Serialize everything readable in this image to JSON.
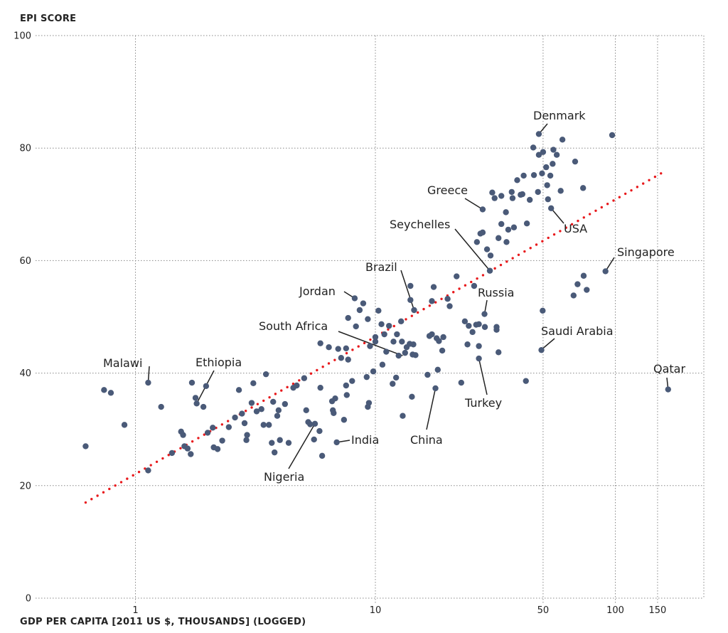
{
  "chart_data": {
    "type": "scatter",
    "ylabel": "EPI SCORE",
    "xlabel": "GDP PER CAPITA [2011 US $, THOUSANDS] (LOGGED)",
    "x_scale": "log",
    "xlim": [
      0.5,
      180
    ],
    "ylim": [
      0,
      100
    ],
    "x_ticks": [
      {
        "value": 1,
        "label": "1"
      },
      {
        "value": 10,
        "label": "10"
      },
      {
        "value": 50,
        "label": "50"
      },
      {
        "value": 100,
        "label": "100"
      },
      {
        "value": 150,
        "label": "150"
      }
    ],
    "y_ticks": [
      {
        "value": 0,
        "label": "0"
      },
      {
        "value": 20,
        "label": "20"
      },
      {
        "value": 40,
        "label": "40"
      },
      {
        "value": 60,
        "label": "60"
      },
      {
        "value": 80,
        "label": "80"
      },
      {
        "value": 100,
        "label": "100"
      }
    ],
    "grid": true,
    "dot_color": "#4a5a78",
    "trend_color": "#e8191c",
    "trend_line": {
      "style": "dotted",
      "x": [
        0.62,
        155
      ],
      "y": [
        17,
        75.5
      ]
    },
    "annotations": [
      {
        "label": "Denmark",
        "x": 48,
        "y": 82.5
      },
      {
        "label": "Greece",
        "x": 28,
        "y": 69.1
      },
      {
        "label": "Seychelles",
        "x": 30,
        "y": 58.2
      },
      {
        "label": "USA",
        "x": 54,
        "y": 69.3
      },
      {
        "label": "Singapore",
        "x": 91,
        "y": 58.1
      },
      {
        "label": "Brazil",
        "x": 14.5,
        "y": 51.2
      },
      {
        "label": "Russia",
        "x": 28.5,
        "y": 50.5
      },
      {
        "label": "Jordan",
        "x": 8.2,
        "y": 53.3
      },
      {
        "label": "South Africa",
        "x": 13,
        "y": 43.1
      },
      {
        "label": "Saudi Arabia",
        "x": 49,
        "y": 44.1
      },
      {
        "label": "Malawi",
        "x": 1.13,
        "y": 38.3
      },
      {
        "label": "Ethiopia",
        "x": 1.8,
        "y": 34.6
      },
      {
        "label": "Qatar",
        "x": 166,
        "y": 37.1
      },
      {
        "label": "Turkey",
        "x": 27,
        "y": 42.6
      },
      {
        "label": "China",
        "x": 17.8,
        "y": 37.3
      },
      {
        "label": "India",
        "x": 6.9,
        "y": 27.7
      },
      {
        "label": "Nigeria",
        "x": 5.6,
        "y": 31.0
      }
    ],
    "points": [
      [
        0.62,
        27
      ],
      [
        0.74,
        37
      ],
      [
        0.79,
        36.5
      ],
      [
        0.9,
        30.8
      ],
      [
        1.13,
        38.3
      ],
      [
        1.13,
        22.7
      ],
      [
        1.28,
        34
      ],
      [
        1.42,
        25.8
      ],
      [
        1.55,
        29.6
      ],
      [
        1.58,
        29
      ],
      [
        1.6,
        27
      ],
      [
        1.65,
        26.6
      ],
      [
        1.7,
        25.6
      ],
      [
        1.72,
        38.3
      ],
      [
        1.8,
        34.6
      ],
      [
        1.78,
        35.6
      ],
      [
        1.92,
        34
      ],
      [
        1.97,
        37.7
      ],
      [
        2.0,
        29.4
      ],
      [
        2.1,
        30.3
      ],
      [
        2.12,
        26.8
      ],
      [
        2.2,
        26.5
      ],
      [
        2.3,
        28
      ],
      [
        2.45,
        30.4
      ],
      [
        2.6,
        32.1
      ],
      [
        2.7,
        37
      ],
      [
        2.78,
        32.8
      ],
      [
        2.85,
        31.1
      ],
      [
        2.9,
        28.1
      ],
      [
        2.92,
        29
      ],
      [
        3.05,
        34.7
      ],
      [
        3.1,
        38.2
      ],
      [
        3.2,
        33.2
      ],
      [
        3.35,
        33.6
      ],
      [
        3.42,
        30.8
      ],
      [
        3.5,
        39.8
      ],
      [
        3.6,
        30.8
      ],
      [
        3.75,
        34.9
      ],
      [
        3.7,
        27.6
      ],
      [
        3.8,
        25.9
      ],
      [
        3.9,
        32.4
      ],
      [
        3.95,
        33.4
      ],
      [
        4.0,
        28.1
      ],
      [
        4.2,
        34.5
      ],
      [
        4.35,
        27.6
      ],
      [
        4.55,
        37.4
      ],
      [
        4.7,
        37.8
      ],
      [
        5.05,
        39.1
      ],
      [
        5.15,
        33.4
      ],
      [
        5.25,
        31.3
      ],
      [
        5.35,
        30.9
      ],
      [
        5.55,
        28.2
      ],
      [
        5.6,
        31.0
      ],
      [
        5.85,
        29.7
      ],
      [
        5.9,
        37.4
      ],
      [
        6.0,
        25.3
      ],
      [
        5.9,
        45.3
      ],
      [
        6.4,
        44.6
      ],
      [
        6.6,
        35
      ],
      [
        6.65,
        33.4
      ],
      [
        6.7,
        32.9
      ],
      [
        6.8,
        35.5
      ],
      [
        6.9,
        27.7
      ],
      [
        7.0,
        44.3
      ],
      [
        7.2,
        42.7
      ],
      [
        7.4,
        31.7
      ],
      [
        7.55,
        37.8
      ],
      [
        7.55,
        44.4
      ],
      [
        7.6,
        36.1
      ],
      [
        7.7,
        42.4
      ],
      [
        7.7,
        49.8
      ],
      [
        8.0,
        38.6
      ],
      [
        8.3,
        48.3
      ],
      [
        8.2,
        53.3
      ],
      [
        8.6,
        51.2
      ],
      [
        8.9,
        52.4
      ],
      [
        9.2,
        39.3
      ],
      [
        9.3,
        34
      ],
      [
        9.4,
        34.7
      ],
      [
        9.3,
        49.6
      ],
      [
        9.5,
        44.8
      ],
      [
        9.8,
        40.3
      ],
      [
        10.0,
        45.6
      ],
      [
        10.0,
        46.4
      ],
      [
        10.3,
        51.1
      ],
      [
        10.6,
        48.7
      ],
      [
        10.7,
        41.5
      ],
      [
        10.9,
        46.9
      ],
      [
        11.1,
        43.8
      ],
      [
        11.4,
        48.4
      ],
      [
        11.8,
        38.1
      ],
      [
        11.9,
        45.6
      ],
      [
        12.3,
        46.9
      ],
      [
        12.2,
        39.2
      ],
      [
        12.5,
        43.1
      ],
      [
        12.8,
        49.2
      ],
      [
        12.9,
        45.6
      ],
      [
        13.0,
        32.4
      ],
      [
        13.3,
        43.6
      ],
      [
        13.5,
        44.6
      ],
      [
        13.9,
        45.2
      ],
      [
        14.0,
        53
      ],
      [
        14.2,
        35.8
      ],
      [
        14.4,
        45.1
      ],
      [
        14.5,
        51.2
      ],
      [
        14.3,
        43.3
      ],
      [
        14.0,
        55.5
      ],
      [
        14.7,
        43.2
      ],
      [
        16.5,
        39.7
      ],
      [
        16.8,
        46.6
      ],
      [
        17.2,
        46.9
      ],
      [
        17.2,
        52.8
      ],
      [
        17.8,
        37.3
      ],
      [
        17.5,
        55.3
      ],
      [
        18.0,
        46.2
      ],
      [
        18.2,
        40.6
      ],
      [
        18.4,
        45.7
      ],
      [
        19.0,
        44
      ],
      [
        19.2,
        46.4
      ],
      [
        20.0,
        53.2
      ],
      [
        20.4,
        51.9
      ],
      [
        21.8,
        57.2
      ],
      [
        22.8,
        38.3
      ],
      [
        23.6,
        49.2
      ],
      [
        24.2,
        45.1
      ],
      [
        24.5,
        48.4
      ],
      [
        25.4,
        47.3
      ],
      [
        25.8,
        55.5
      ],
      [
        26.3,
        48.6
      ],
      [
        26.5,
        63.3
      ],
      [
        27.0,
        42.6
      ],
      [
        27.0,
        44.8
      ],
      [
        27.0,
        48.7
      ],
      [
        27.4,
        64.8
      ],
      [
        28.0,
        65
      ],
      [
        28.0,
        69.1
      ],
      [
        28.5,
        50.5
      ],
      [
        28.6,
        48.2
      ],
      [
        29.2,
        62
      ],
      [
        30.0,
        58.2
      ],
      [
        30.2,
        60.9
      ],
      [
        30.7,
        72.1
      ],
      [
        31.4,
        71.1
      ],
      [
        32.0,
        47.7
      ],
      [
        32.0,
        48.2
      ],
      [
        32.6,
        43.7
      ],
      [
        32.6,
        64
      ],
      [
        33.5,
        66.5
      ],
      [
        33.5,
        71.5
      ],
      [
        35.0,
        68.6
      ],
      [
        35.2,
        63.3
      ],
      [
        35.8,
        65.5
      ],
      [
        37.0,
        72.2
      ],
      [
        37.3,
        71.1
      ],
      [
        37.8,
        65.9
      ],
      [
        39.0,
        74.3
      ],
      [
        40.3,
        71.7
      ],
      [
        41.0,
        71.8
      ],
      [
        41.5,
        75.1
      ],
      [
        42.4,
        38.6
      ],
      [
        42.8,
        66.6
      ],
      [
        44.0,
        70.8
      ],
      [
        45.5,
        80.1
      ],
      [
        45.8,
        75.2
      ],
      [
        47.6,
        72.2
      ],
      [
        48.0,
        82.5
      ],
      [
        48.0,
        78.8
      ],
      [
        49.2,
        44.1
      ],
      [
        49.5,
        75.5
      ],
      [
        49.8,
        51.1
      ],
      [
        50.0,
        79.3
      ],
      [
        51.5,
        76.6
      ],
      [
        54.0,
        69.3
      ],
      [
        52.0,
        73.4
      ],
      [
        52.4,
        70.9
      ],
      [
        53.6,
        75.1
      ],
      [
        55.2,
        79.7
      ],
      [
        54.8,
        77.2
      ],
      [
        57.0,
        78.8
      ],
      [
        59.2,
        72.4
      ],
      [
        60.2,
        81.5
      ],
      [
        67.0,
        53.8
      ],
      [
        68.0,
        77.6
      ],
      [
        69.6,
        55.8
      ],
      [
        73.8,
        57.3
      ],
      [
        73.4,
        72.9
      ],
      [
        76.0,
        54.8
      ],
      [
        91.0,
        58.1
      ],
      [
        97.0,
        82.3
      ],
      [
        166.0,
        37.1
      ]
    ]
  }
}
